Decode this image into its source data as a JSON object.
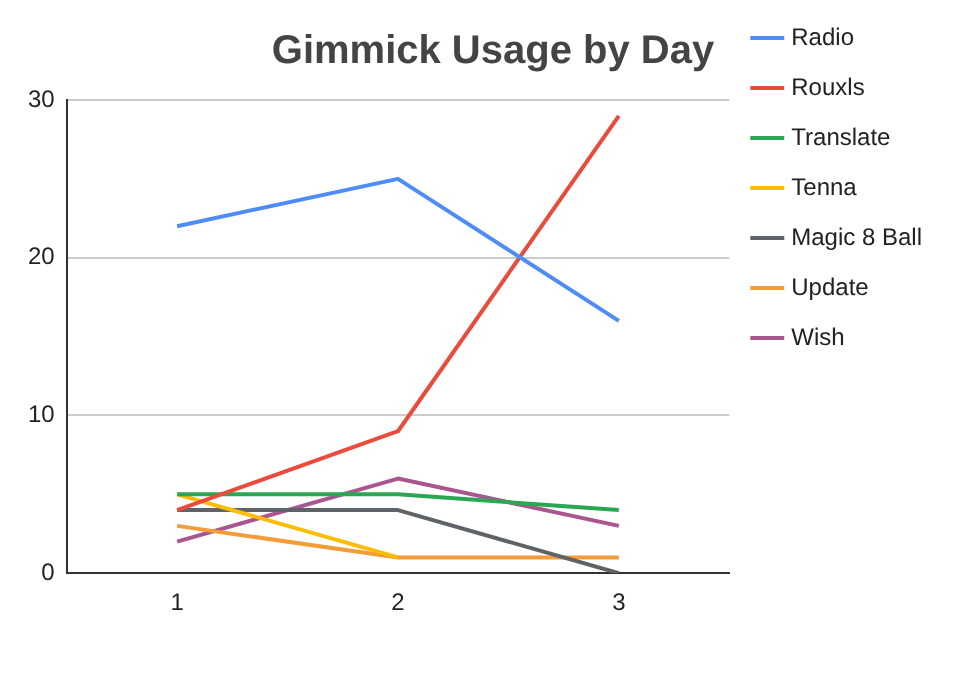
{
  "chart_data": {
    "type": "line",
    "title": "Gimmick Usage by Day",
    "categories": [
      "1",
      "2",
      "3"
    ],
    "series": [
      {
        "name": "Radio",
        "color": "#4e8df5",
        "values": [
          22,
          25,
          16
        ]
      },
      {
        "name": "Rouxls",
        "color": "#ea4b3c",
        "values": [
          4,
          9,
          29
        ]
      },
      {
        "name": "Translate",
        "color": "#2aa752",
        "values": [
          5,
          5,
          4
        ]
      },
      {
        "name": "Tenna",
        "color": "#fbbc04",
        "values": [
          5,
          1,
          null
        ]
      },
      {
        "name": "Magic 8 Ball",
        "color": "#5f6368",
        "values": [
          4,
          4,
          0
        ]
      },
      {
        "name": "Update",
        "color": "#f29d38",
        "values": [
          3,
          1,
          1
        ]
      },
      {
        "name": "Wish",
        "color": "#a9558f",
        "values": [
          2,
          6,
          3
        ]
      }
    ],
    "ylim": [
      0,
      30
    ],
    "yticks": [
      0,
      10,
      20,
      30
    ],
    "grid": "y",
    "legend": "right",
    "marker": "none",
    "line_style": "solid"
  }
}
